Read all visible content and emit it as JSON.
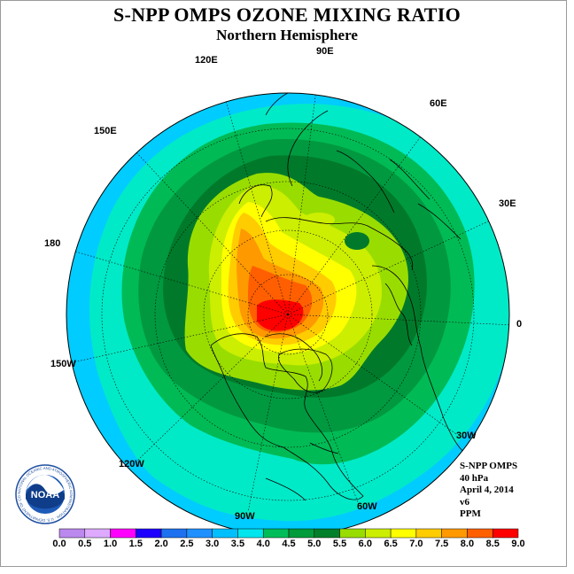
{
  "header": {
    "title": "S-NPP OMPS OZONE MIXING RATIO",
    "subtitle": "Northern Hemisphere"
  },
  "map": {
    "projection": "north polar stereographic",
    "longitude_labels": [
      "90E",
      "60E",
      "30E",
      "0",
      "30W",
      "60W",
      "90W",
      "120W",
      "150W",
      "180",
      "150E",
      "120E"
    ],
    "ocean_fill": "#00ccff",
    "features": [
      {
        "region": "North pole / Siberian sector",
        "ozone_ppm": "8.0-8.5+"
      },
      {
        "region": "Arctic ring",
        "ozone_ppm": "6.0-8.0"
      },
      {
        "region": "Mid-latitudes",
        "ozone_ppm": "4.0-5.5"
      },
      {
        "region": "Subtropics",
        "ozone_ppm": "3.0-4.0"
      }
    ]
  },
  "info": {
    "product": "S-NPP OMPS",
    "level": "40 hPa",
    "date": "April 4, 2014",
    "version": "v6",
    "units": "PPM"
  },
  "colorbar": {
    "ticks": [
      "0.0",
      "0.5",
      "1.0",
      "1.5",
      "2.0",
      "2.5",
      "3.0",
      "3.5",
      "4.0",
      "4.5",
      "5.0",
      "5.5",
      "6.0",
      "6.5",
      "7.0",
      "7.5",
      "8.0",
      "8.5",
      "9.0"
    ],
    "colors": [
      "#bb88ee",
      "#ddaaff",
      "#ff00ff",
      "#1e00ff",
      "#1d71f0",
      "#1e90ff",
      "#00bfff",
      "#00e5ee",
      "#00bd5a",
      "#009b3a",
      "#007f2a",
      "#99dd00",
      "#ccee00",
      "#ffff00",
      "#ffcc00",
      "#ff9900",
      "#ff5f00",
      "#ff0000",
      "#996644"
    ]
  },
  "logo": {
    "text": "NOAA",
    "ring_text": "NATIONAL OCEANIC AND ATMOSPHERIC ADMINISTRATION · U.S. DEPARTMENT OF COMMERCE"
  }
}
